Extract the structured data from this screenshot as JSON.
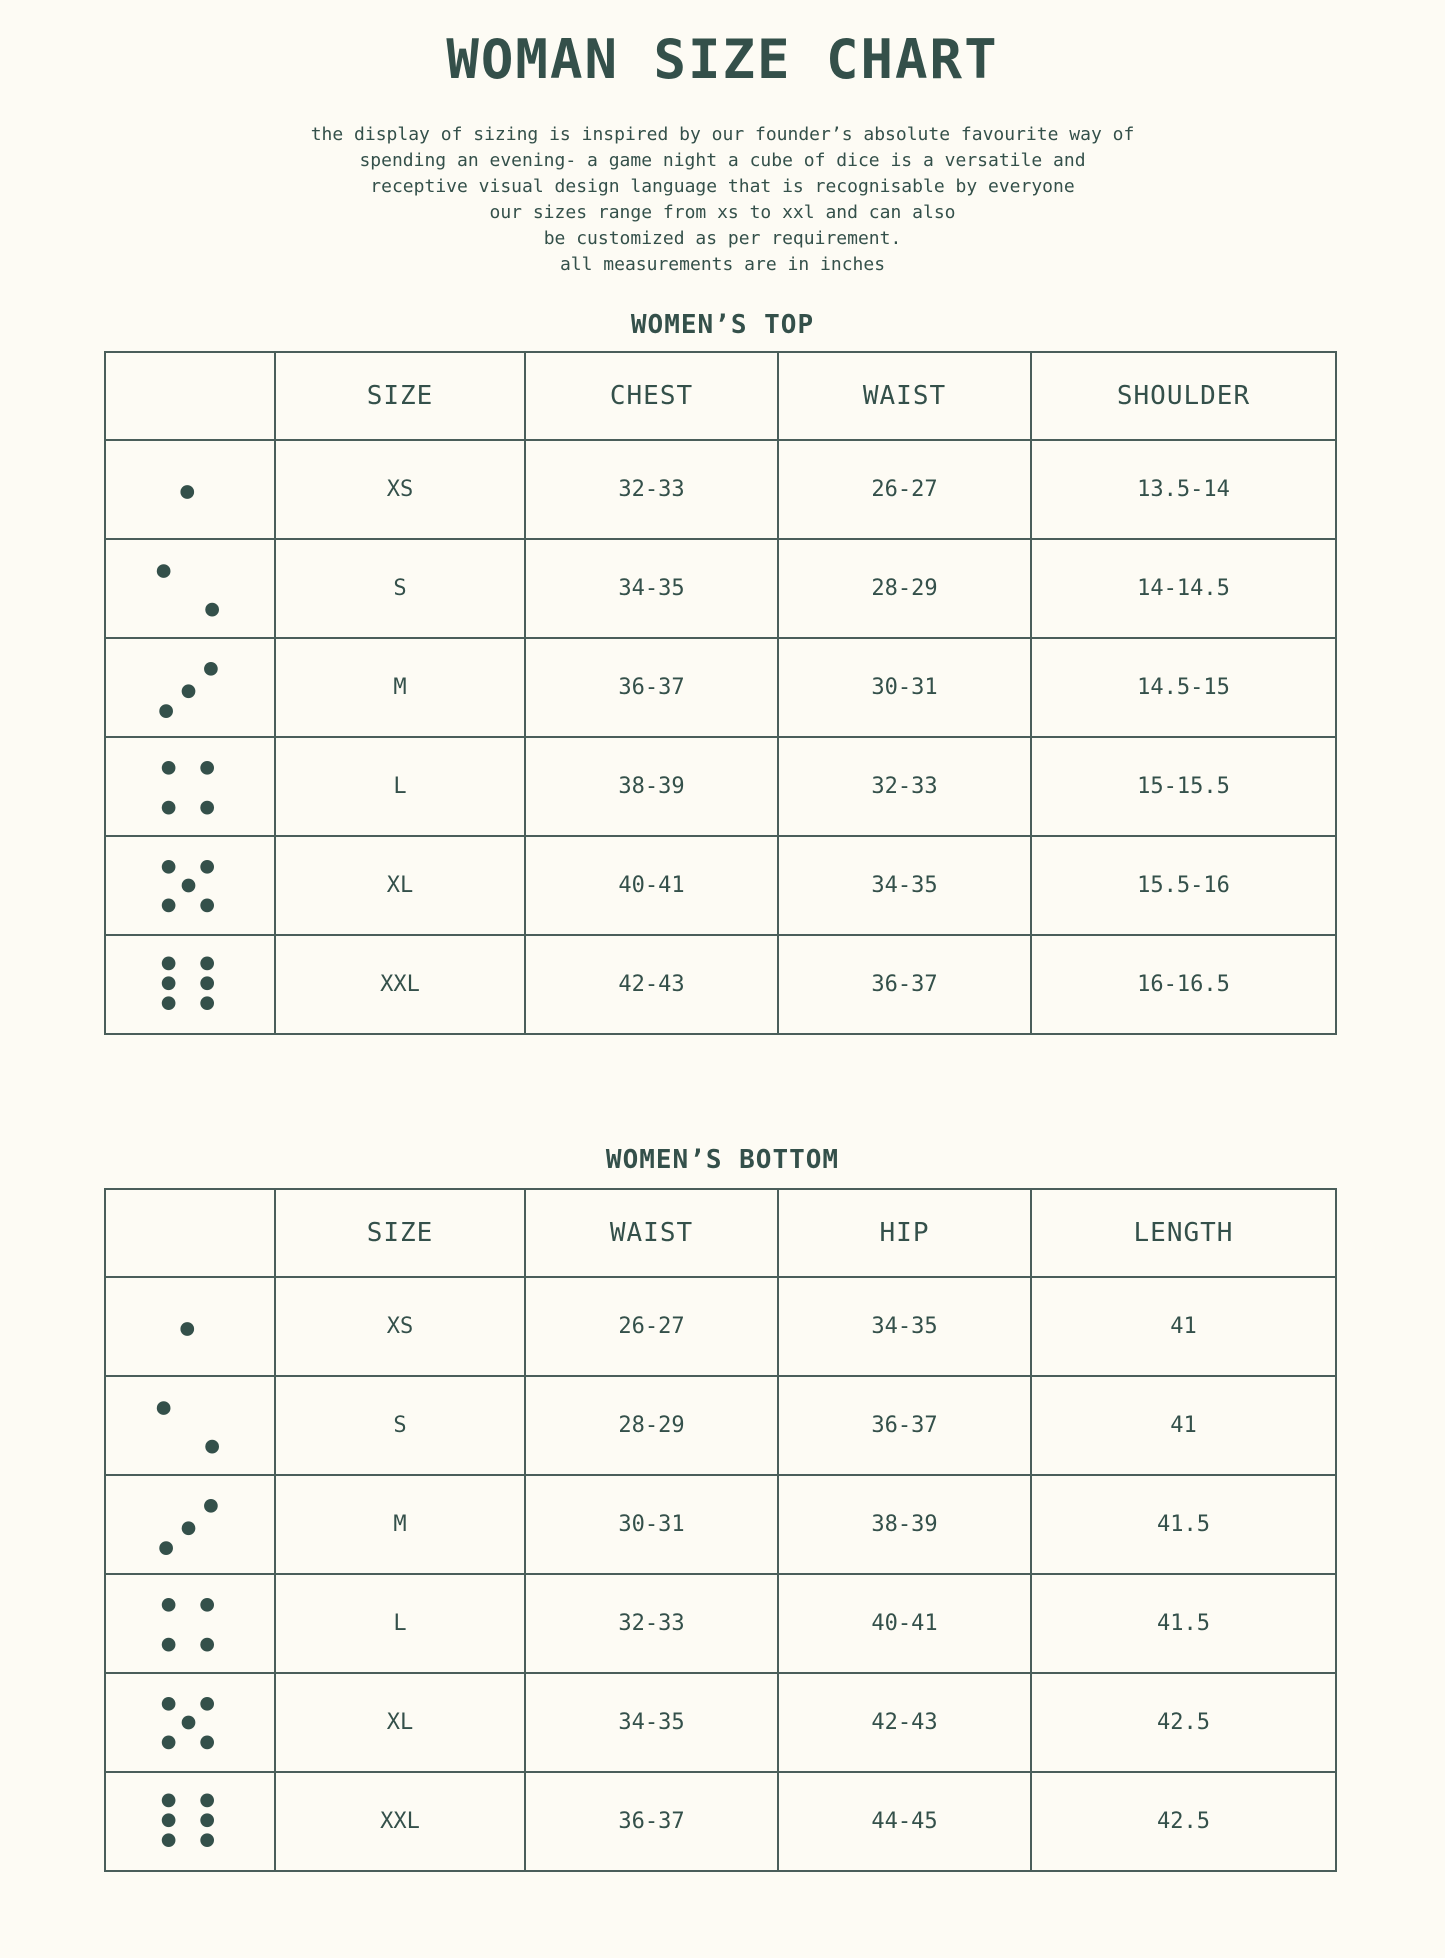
{
  "title": "WOMAN SIZE CHART",
  "intro_lines": [
    "the display of sizing is inspired by our founder’s absolute favourite way of",
    "spending an evening- a game night a cube of dice is a versatile and",
    "receptive visual design language that is recognisable by everyone",
    "our sizes range from xs to xxl and can also",
    "be customized as per requirement.",
    "all measurements are in inches"
  ],
  "colors": {
    "text": "#34504a",
    "background": "#fdfbf4",
    "border": "#4a5e5a"
  },
  "tables": [
    {
      "title": "WOMEN’S TOP",
      "headers": [
        "",
        "SIZE",
        "CHEST",
        "WAIST",
        "SHOULDER"
      ],
      "rows": [
        {
          "dice": "dice-1-icon",
          "pips": 1,
          "cells": [
            "XS",
            "32-33",
            "26-27",
            "13.5-14"
          ]
        },
        {
          "dice": "dice-2-icon",
          "pips": 2,
          "cells": [
            "S",
            "34-35",
            "28-29",
            "14-14.5"
          ]
        },
        {
          "dice": "dice-3-icon",
          "pips": 3,
          "cells": [
            "M",
            "36-37",
            "30-31",
            "14.5-15"
          ]
        },
        {
          "dice": "dice-4-icon",
          "pips": 4,
          "cells": [
            "L",
            "38-39",
            "32-33",
            "15-15.5"
          ]
        },
        {
          "dice": "dice-5-icon",
          "pips": 5,
          "cells": [
            "XL",
            "40-41",
            "34-35",
            "15.5-16"
          ]
        },
        {
          "dice": "dice-6-icon",
          "pips": 6,
          "cells": [
            "XXL",
            "42-43",
            "36-37",
            "16-16.5"
          ]
        }
      ]
    },
    {
      "title": "WOMEN’S BOTTOM",
      "headers": [
        "",
        "SIZE",
        "WAIST",
        "HIP",
        "LENGTH"
      ],
      "rows": [
        {
          "dice": "dice-1-icon",
          "pips": 1,
          "cells": [
            "XS",
            "26-27",
            "34-35",
            "41"
          ]
        },
        {
          "dice": "dice-2-icon",
          "pips": 2,
          "cells": [
            "S",
            "28-29",
            "36-37",
            "41"
          ]
        },
        {
          "dice": "dice-3-icon",
          "pips": 3,
          "cells": [
            "M",
            "30-31",
            "38-39",
            "41.5"
          ]
        },
        {
          "dice": "dice-4-icon",
          "pips": 4,
          "cells": [
            "L",
            "32-33",
            "40-41",
            "41.5"
          ]
        },
        {
          "dice": "dice-5-icon",
          "pips": 5,
          "cells": [
            "XL",
            "34-35",
            "42-43",
            "42.5"
          ]
        },
        {
          "dice": "dice-6-icon",
          "pips": 6,
          "cells": [
            "XXL",
            "36-37",
            "44-45",
            "42.5"
          ]
        }
      ]
    }
  ]
}
